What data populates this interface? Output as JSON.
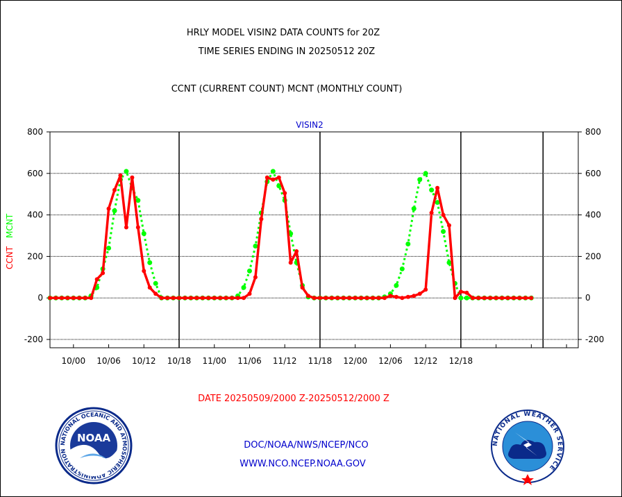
{
  "header": {
    "title1": "HRLY MODEL VISIN2 DATA COUNTS for 20Z",
    "title2": "TIME SERIES ENDING IN 20250512 20Z",
    "subtitle": "CCNT (CURRENT COUNT) MCNT (MONTHLY COUNT)"
  },
  "footer": {
    "date_range": "DATE 20250509/2000 Z-20250512/2000 Z",
    "org": "DOC/NOAA/NWS/NCEP/NCO",
    "url": "WWW.NCO.NCEP.NOAA.GOV"
  },
  "logos": {
    "noaa_text": "NOAA",
    "noaa_ring": "NATIONAL OCEANIC AND ATMOSPHERIC ADMINISTRATION · U.S. DEPARTMENT OF COMMERCE",
    "nws_ring": "NATIONAL WEATHER SERVICE"
  },
  "chart_data": {
    "type": "line",
    "title": "VISIN2",
    "ylabel_ccnt": "CCNT",
    "ylabel_mcnt": "MCNT",
    "ylim": [
      -240,
      800
    ],
    "yticks": [
      -200,
      0,
      200,
      400,
      600,
      800
    ],
    "ytick_labels": [
      "-200",
      "0",
      "200",
      "400",
      "600",
      "800"
    ],
    "xlim": [
      -10,
      80
    ],
    "xticks": [
      -6,
      0,
      6,
      12,
      18,
      24,
      30,
      36,
      42,
      48,
      54,
      60,
      66,
      72,
      78
    ],
    "xtick_labels": [
      "10/00",
      "10/06",
      "10/12",
      "10/18",
      "11/00",
      "11/06",
      "11/12",
      "11/18",
      "12/00",
      "12/06",
      "12/12",
      "12/18"
    ],
    "xtick_label_hours": [
      -6,
      0,
      6,
      12,
      18,
      24,
      30,
      36,
      42,
      48,
      54,
      60
    ],
    "day_dividers": [
      12,
      36,
      60,
      74
    ],
    "grid": true,
    "series": [
      {
        "name": "CCNT",
        "color": "#ff0000",
        "style": "solid",
        "x": [
          -10,
          -9,
          -8,
          -7,
          -6,
          -5,
          -4,
          -3,
          -2,
          -1,
          0,
          1,
          2,
          3,
          4,
          5,
          6,
          7,
          8,
          9,
          10,
          11,
          12,
          13,
          14,
          15,
          16,
          17,
          18,
          19,
          20,
          21,
          22,
          23,
          24,
          25,
          26,
          27,
          28,
          29,
          30,
          31,
          32,
          33,
          34,
          35,
          36,
          37,
          38,
          39,
          40,
          41,
          42,
          43,
          44,
          45,
          46,
          47,
          48,
          49,
          50,
          51,
          52,
          53,
          54,
          55,
          56,
          57,
          58,
          59,
          60,
          61,
          62,
          63,
          64,
          65,
          66,
          67,
          68,
          69,
          70,
          71,
          72
        ],
        "values": [
          0,
          0,
          0,
          0,
          0,
          0,
          0,
          0,
          90,
          120,
          430,
          520,
          590,
          340,
          580,
          340,
          130,
          50,
          20,
          0,
          0,
          0,
          0,
          0,
          0,
          0,
          0,
          0,
          0,
          0,
          0,
          0,
          0,
          0,
          20,
          100,
          380,
          580,
          570,
          580,
          505,
          170,
          225,
          50,
          10,
          0,
          0,
          0,
          0,
          0,
          0,
          0,
          0,
          0,
          0,
          0,
          0,
          0,
          10,
          5,
          0,
          5,
          10,
          20,
          40,
          410,
          530,
          400,
          350,
          0,
          30,
          25,
          0,
          0,
          0,
          0,
          0,
          0,
          0,
          0,
          0,
          0,
          0
        ]
      },
      {
        "name": "MCNT",
        "color": "#00ff00",
        "style": "dotted",
        "x": [
          -10,
          -9,
          -8,
          -7,
          -6,
          -5,
          -4,
          -3,
          -2,
          -1,
          0,
          1,
          2,
          3,
          4,
          5,
          6,
          7,
          8,
          9,
          10,
          11,
          12,
          13,
          14,
          15,
          16,
          17,
          18,
          19,
          20,
          21,
          22,
          23,
          24,
          25,
          26,
          27,
          28,
          29,
          30,
          31,
          32,
          33,
          34,
          35,
          36,
          37,
          38,
          39,
          40,
          41,
          42,
          43,
          44,
          45,
          46,
          47,
          48,
          49,
          50,
          51,
          52,
          53,
          54,
          55,
          56,
          57,
          58,
          59,
          60,
          61,
          62,
          63,
          64,
          65,
          66,
          67,
          68,
          69,
          70,
          71,
          72
        ],
        "values": [
          0,
          0,
          0,
          0,
          0,
          0,
          0,
          10,
          50,
          140,
          240,
          420,
          570,
          610,
          530,
          470,
          310,
          170,
          70,
          0,
          0,
          0,
          0,
          0,
          0,
          0,
          0,
          0,
          0,
          0,
          0,
          0,
          10,
          50,
          130,
          250,
          410,
          560,
          610,
          540,
          470,
          310,
          170,
          60,
          5,
          0,
          0,
          0,
          0,
          0,
          0,
          0,
          0,
          0,
          0,
          0,
          0,
          5,
          20,
          60,
          140,
          260,
          430,
          570,
          600,
          520,
          460,
          320,
          170,
          70,
          0,
          0,
          0,
          0,
          0,
          0,
          0,
          0,
          0,
          0,
          0,
          0,
          0
        ]
      }
    ]
  }
}
